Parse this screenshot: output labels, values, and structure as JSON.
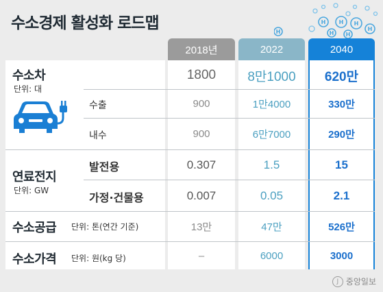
{
  "title": "수소경제 활성화 로드맵",
  "headers": [
    "2018년",
    "2022",
    "2040"
  ],
  "colors": {
    "c2018": "#9b9b9b",
    "c2022": "#8ab6c8",
    "c2040": "#1582d8"
  },
  "car": {
    "category": "수소차",
    "unit": "단위: 대",
    "icon": "car-charging-icon",
    "total": [
      "1800",
      "8만1000",
      "620만"
    ],
    "export": {
      "label": "수출",
      "values": [
        "900",
        "1만4000",
        "330만"
      ]
    },
    "domestic": {
      "label": "내수",
      "values": [
        "900",
        "6만7000",
        "290만"
      ]
    }
  },
  "fuelcell": {
    "category": "연료전지",
    "unit": "단위: GW",
    "power": {
      "label": "발전용",
      "values": [
        "0.307",
        "1.5",
        "15"
      ]
    },
    "home": {
      "label": "가정·건물용",
      "values": [
        "0.007",
        "0.05",
        "2.1"
      ]
    }
  },
  "supply": {
    "category": "수소공급",
    "unit": "단위: 톤(연간 기준)",
    "values": [
      "13만",
      "47만",
      "526만"
    ]
  },
  "price": {
    "category": "수소가격",
    "unit": "단위: 원(kg 당)",
    "values": [
      "–",
      "6000",
      "3000"
    ]
  },
  "credit": "중앙일보",
  "bubble_letter": "H"
}
